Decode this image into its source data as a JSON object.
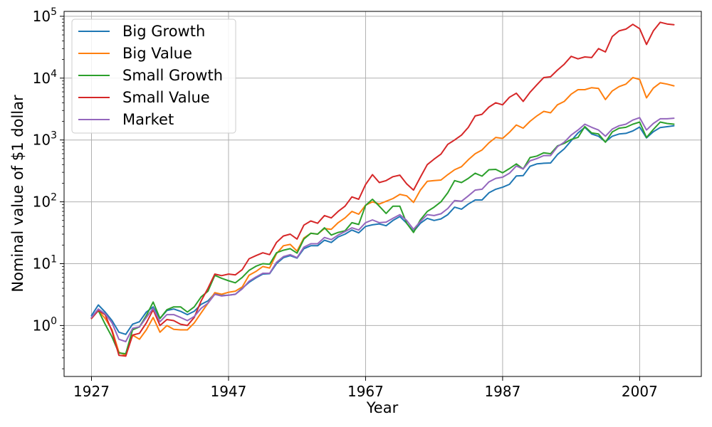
{
  "colors": {
    "big_growth": "#1f77b4",
    "big_value": "#ff7f0e",
    "small_growth": "#2ca02c",
    "small_value": "#d62728",
    "market": "#9467bd"
  },
  "chart_data": {
    "type": "line",
    "xlabel": "Year",
    "ylabel": "Nominal value of $1 dollar",
    "y_scale": "log",
    "ylim": [
      0.15,
      120000
    ],
    "xlim": [
      1923,
      2016
    ],
    "grid": true,
    "legend_placement": "top-left",
    "x_ticks": [
      1927,
      1947,
      1967,
      1987,
      2007
    ],
    "x_tick_labels": [
      "1927",
      "1947",
      "1967",
      "1987",
      "2007"
    ],
    "y_ticks": [
      {
        "value": 1,
        "base": "10",
        "exp": "0"
      },
      {
        "value": 10,
        "base": "10",
        "exp": "1"
      },
      {
        "value": 100,
        "base": "10",
        "exp": "2"
      },
      {
        "value": 1000,
        "base": "10",
        "exp": "3"
      },
      {
        "value": 10000,
        "base": "10",
        "exp": "4"
      },
      {
        "value": 100000,
        "base": "10",
        "exp": "5"
      }
    ],
    "x": [
      1927,
      1928,
      1929,
      1930,
      1931,
      1932,
      1933,
      1934,
      1935,
      1936,
      1937,
      1938,
      1939,
      1940,
      1941,
      1942,
      1943,
      1944,
      1945,
      1946,
      1947,
      1948,
      1949,
      1950,
      1951,
      1952,
      1953,
      1954,
      1955,
      1956,
      1957,
      1958,
      1959,
      1960,
      1961,
      1962,
      1963,
      1964,
      1965,
      1966,
      1967,
      1968,
      1969,
      1970,
      1971,
      1972,
      1973,
      1974,
      1975,
      1976,
      1977,
      1978,
      1979,
      1980,
      1981,
      1982,
      1983,
      1984,
      1985,
      1986,
      1987,
      1988,
      1989,
      1990,
      1991,
      1992,
      1993,
      1994,
      1995,
      1996,
      1997,
      1998,
      1999,
      2000,
      2001,
      2002,
      2003,
      2004,
      2005,
      2006,
      2007,
      2008,
      2009,
      2010,
      2011,
      2012
    ],
    "series": [
      {
        "name": "Big Growth",
        "color_key": "big_growth",
        "values": [
          1.45,
          2.15,
          1.65,
          1.2,
          0.78,
          0.72,
          1.05,
          1.15,
          1.65,
          2.0,
          1.3,
          1.75,
          1.85,
          1.7,
          1.5,
          1.7,
          2.2,
          2.5,
          3.3,
          3.05,
          3.1,
          3.2,
          4.0,
          5.0,
          5.9,
          6.8,
          6.9,
          10.0,
          12.5,
          13.5,
          12.3,
          17.5,
          19.5,
          19.5,
          24.0,
          22.0,
          27.0,
          30.0,
          35.0,
          31.5,
          40.0,
          42.5,
          44.0,
          41.0,
          50.0,
          58.0,
          45.0,
          33.0,
          45.0,
          54.0,
          50.0,
          53.0,
          62.0,
          82.0,
          76.0,
          92.0,
          107.0,
          107.0,
          140.0,
          160.0,
          172.0,
          192.0,
          262.0,
          265.0,
          375.0,
          410.0,
          420.0,
          425.0,
          580.0,
          720.0,
          970.0,
          1300.0,
          1600.0,
          1250.0,
          1150.0,
          930.0,
          1150.0,
          1250.0,
          1280.0,
          1400.0,
          1620.0,
          1080.0,
          1360.0,
          1590.0,
          1640.0,
          1700.0
        ]
      },
      {
        "name": "Big Value",
        "color_key": "big_value",
        "values": [
          1.3,
          1.75,
          1.3,
          0.85,
          0.37,
          0.33,
          0.7,
          0.6,
          0.85,
          1.35,
          0.78,
          1.0,
          0.87,
          0.85,
          0.85,
          1.1,
          1.6,
          2.3,
          3.4,
          3.2,
          3.45,
          3.6,
          4.2,
          6.5,
          7.5,
          9.0,
          8.5,
          14.5,
          19.5,
          20.5,
          16.0,
          26.0,
          31.0,
          30.0,
          37.0,
          36.0,
          46.0,
          55.0,
          70.0,
          63.0,
          88.0,
          100.0,
          92.0,
          102.0,
          113.0,
          132.0,
          125.0,
          98.0,
          155.0,
          215.0,
          220.0,
          225.0,
          275.0,
          330.0,
          370.0,
          480.0,
          600.0,
          690.0,
          900.0,
          1100.0,
          1060.0,
          1330.0,
          1750.0,
          1550.0,
          2000.0,
          2450.0,
          2900.0,
          2750.0,
          3700.0,
          4200.0,
          5500.0,
          6500.0,
          6500.0,
          7000.0,
          6800.0,
          4500.0,
          6200.0,
          7300.0,
          8000.0,
          10200.0,
          9500.0,
          4800.0,
          6900.0,
          8400.0,
          8000.0,
          7500.0
        ]
      },
      {
        "name": "Small Growth",
        "color_key": "small_growth",
        "values": [
          1.35,
          1.75,
          1.05,
          0.65,
          0.36,
          0.35,
          0.85,
          0.95,
          1.45,
          2.4,
          1.3,
          1.8,
          2.0,
          2.0,
          1.65,
          2.0,
          2.9,
          3.6,
          6.5,
          5.8,
          5.3,
          4.9,
          6.0,
          7.8,
          9.1,
          10.0,
          9.8,
          15.0,
          16.5,
          17.5,
          14.8,
          25.0,
          31.0,
          30.0,
          38.0,
          29.0,
          32.0,
          34.0,
          46.0,
          43.0,
          87.0,
          110.0,
          85.0,
          65.0,
          85.0,
          85.0,
          45.0,
          32.0,
          51.0,
          70.0,
          82.0,
          100.0,
          140.0,
          220.0,
          205.0,
          240.0,
          290.0,
          260.0,
          330.0,
          335.0,
          295.0,
          345.0,
          410.0,
          340.0,
          520.0,
          550.0,
          620.0,
          600.0,
          800.0,
          880.0,
          1020.0,
          1100.0,
          1650.0,
          1300.0,
          1250.0,
          920.0,
          1350.0,
          1550.0,
          1600.0,
          1800.0,
          1950.0,
          1100.0,
          1480.0,
          1950.0,
          1850.0,
          1800.0
        ]
      },
      {
        "name": "Small Value",
        "color_key": "small_value",
        "values": [
          1.3,
          1.75,
          1.5,
          0.8,
          0.33,
          0.32,
          0.7,
          0.75,
          1.1,
          1.8,
          1.0,
          1.25,
          1.2,
          1.05,
          1.0,
          1.35,
          2.5,
          4.0,
          6.8,
          6.4,
          6.8,
          6.6,
          8.0,
          12.0,
          13.5,
          15.0,
          14.0,
          22.0,
          28.0,
          30.0,
          25.0,
          42.0,
          49.0,
          45.0,
          60.0,
          55.0,
          70.0,
          85.0,
          120.0,
          110.0,
          190.0,
          275.0,
          205.0,
          220.0,
          255.0,
          270.0,
          195.0,
          155.0,
          250.0,
          400.0,
          490.0,
          590.0,
          850.0,
          1000.0,
          1200.0,
          1600.0,
          2450.0,
          2600.0,
          3400.0,
          4000.0,
          3700.0,
          4900.0,
          5700.0,
          4200.0,
          5900.0,
          7800.0,
          10200.0,
          10500.0,
          13500.0,
          16800.0,
          22500.0,
          20500.0,
          22000.0,
          21500.0,
          30000.0,
          26500.0,
          47000.0,
          58000.0,
          62000.0,
          74000.0,
          63000.0,
          35000.0,
          58000.0,
          80000.0,
          75000.0,
          73000.0
        ]
      },
      {
        "name": "Market",
        "color_key": "market",
        "values": [
          1.35,
          1.85,
          1.55,
          1.1,
          0.6,
          0.55,
          0.9,
          0.95,
          1.35,
          1.9,
          1.15,
          1.5,
          1.5,
          1.35,
          1.2,
          1.4,
          1.9,
          2.3,
          3.2,
          3.0,
          3.1,
          3.2,
          3.9,
          5.2,
          6.1,
          7.0,
          7.0,
          10.5,
          13.0,
          14.0,
          12.5,
          18.5,
          21.0,
          21.0,
          26.5,
          24.5,
          29.0,
          33.0,
          38.0,
          35.0,
          46.0,
          51.0,
          46.0,
          47.0,
          54.0,
          62.0,
          50.0,
          36.0,
          48.0,
          62.0,
          60.0,
          64.0,
          78.0,
          105.0,
          102.0,
          125.0,
          155.0,
          160.0,
          210.0,
          240.0,
          250.0,
          290.0,
          380.0,
          340.0,
          460.0,
          500.0,
          560.0,
          560.0,
          780.0,
          920.0,
          1200.0,
          1450.0,
          1800.0,
          1600.0,
          1450.0,
          1150.0,
          1500.0,
          1700.0,
          1800.0,
          2100.0,
          2300.0,
          1450.0,
          1850.0,
          2200.0,
          2200.0,
          2250.0
        ]
      }
    ]
  }
}
